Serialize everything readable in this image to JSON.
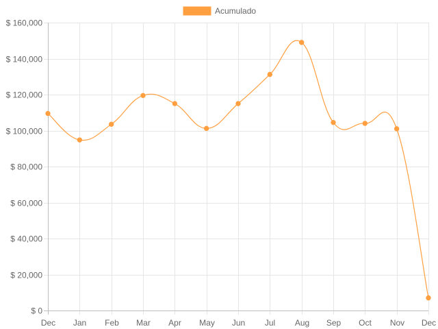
{
  "chart_data": {
    "type": "line",
    "title": "",
    "xlabel": "",
    "ylabel": "",
    "categories": [
      "Dec",
      "Jan",
      "Feb",
      "Mar",
      "Apr",
      "May",
      "Jun",
      "Jul",
      "Aug",
      "Sep",
      "Oct",
      "Nov",
      "Dec"
    ],
    "series": [
      {
        "name": "Acumulado",
        "color": "#ff9f40",
        "values": [
          109500,
          94800,
          103500,
          119500,
          115000,
          101200,
          115000,
          131200,
          149000,
          104500,
          104000,
          101000,
          7000
        ]
      }
    ],
    "ylim": [
      0,
      160000
    ],
    "yticks": [
      0,
      20000,
      40000,
      60000,
      80000,
      100000,
      120000,
      140000,
      160000
    ],
    "ytick_labels": [
      "$ 0",
      "$ 20,000",
      "$ 40,000",
      "$ 60,000",
      "$ 80,000",
      "$ 100,000",
      "$ 120,000",
      "$ 140,000",
      "$ 160,000"
    ],
    "grid": true,
    "legend": "top-center",
    "smooth": true
  }
}
